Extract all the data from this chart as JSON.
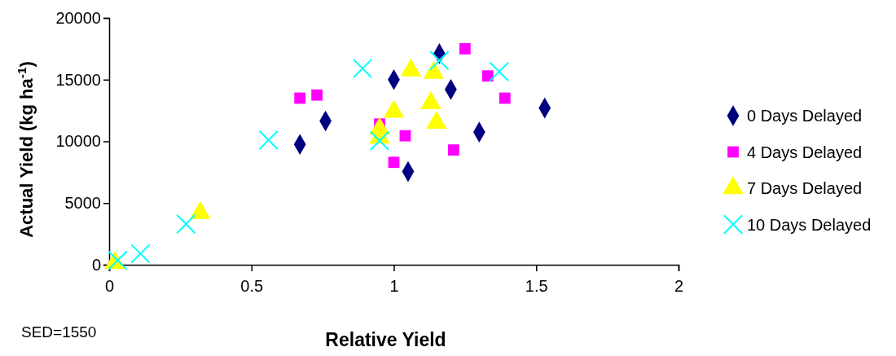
{
  "chart_data": {
    "type": "scatter",
    "xlabel": "Relative Yield",
    "ylabel": "Actual Yield (kg ha$^{-1}$)",
    "annotations": [
      "SED=1550"
    ],
    "xlim": [
      0,
      2
    ],
    "xticks": [
      0,
      0.5,
      1,
      1.5,
      2
    ],
    "ylim": [
      0,
      20000
    ],
    "yticks": [
      0,
      5000,
      10000,
      15000,
      20000
    ],
    "grid": false,
    "legend": "right",
    "series": [
      {
        "name": "0 Days Delayed",
        "color": "#000080",
        "marker": "diamond",
        "x": [
          0.67,
          0.76,
          1.0,
          1.16,
          1.2,
          1.53,
          1.3,
          1.05
        ],
        "values": [
          9750,
          11650,
          15000,
          17100,
          14200,
          12700,
          10750,
          7550
        ]
      },
      {
        "name": "4 Days Delayed",
        "color": "#ff00ff",
        "marker": "square",
        "x": [
          0.67,
          0.73,
          1.25,
          1.33,
          1.39,
          0.95,
          1.04,
          1.0,
          1.21
        ],
        "values": [
          13500,
          13750,
          17500,
          15300,
          13500,
          11400,
          10450,
          8300,
          9300
        ]
      },
      {
        "name": "7 Days Delayed",
        "color": "#ffff00",
        "marker": "triangle",
        "x": [
          1.06,
          1.14,
          1.0,
          1.13,
          1.15,
          0.95,
          0.95,
          0.32,
          0.02
        ],
        "values": [
          15750,
          15550,
          12400,
          13100,
          11500,
          11000,
          10300,
          4200,
          150
        ]
      },
      {
        "name": "10 Days Delayed",
        "color": "#00ffff",
        "marker": "cross",
        "x": [
          0.89,
          0.56,
          0.27,
          0.11,
          0.03,
          0.95,
          1.16,
          1.37
        ],
        "values": [
          15900,
          10100,
          3300,
          900,
          350,
          10050,
          16550,
          15650
        ]
      }
    ]
  }
}
